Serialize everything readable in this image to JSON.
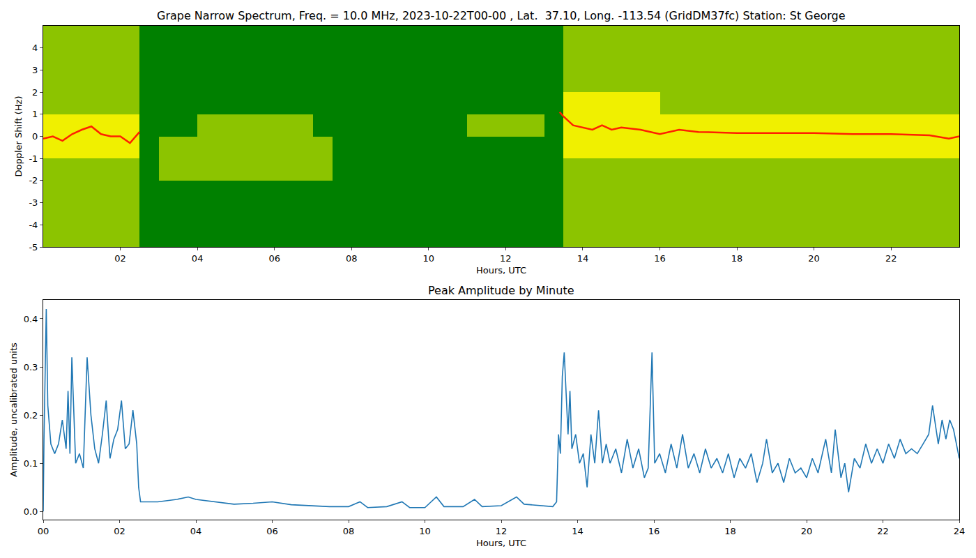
{
  "chart_data": [
    {
      "type": "heatmap",
      "title": "Grape Narrow Spectrum, Freq. = 10.0 MHz, 2023-10-22T00-00 , Lat.  37.10, Long. -113.54 (GridDM37fc) Station: St George",
      "xlabel": "Hours, UTC",
      "ylabel": "Doppler Shift (Hz)",
      "x": [
        0.25,
        0.75,
        1.25,
        1.75,
        2.25,
        2.75,
        3.25,
        3.75,
        4.25,
        4.75,
        5.25,
        5.75,
        6.25,
        6.75,
        7.25,
        7.75,
        8.25,
        8.75,
        9.25,
        9.75,
        10.25,
        10.75,
        11.25,
        11.75,
        12.25,
        12.75,
        13.25,
        13.75,
        14.25,
        14.75,
        15.25,
        15.75,
        16.25,
        16.75,
        17.25,
        17.75,
        18.25,
        18.75,
        19.25,
        19.75,
        20.25,
        20.75,
        21.25,
        21.75,
        22.25,
        22.75,
        23.25,
        23.75
      ],
      "y": [
        -4.5,
        -3.5,
        -2.5,
        -1.5,
        -0.5,
        0.5,
        1.5,
        2.5,
        3.5,
        4.5
      ],
      "z": [
        [
          1,
          1,
          1,
          1,
          1,
          0,
          0,
          0,
          0,
          0,
          0,
          0,
          0,
          0,
          0,
          0,
          0,
          0,
          0,
          0,
          0,
          0,
          0,
          0,
          0,
          0,
          0,
          1,
          1,
          1,
          1,
          1,
          1,
          1,
          1,
          1,
          1,
          1,
          1,
          1,
          1,
          1,
          1,
          1,
          1,
          1,
          1,
          1
        ],
        [
          1,
          1,
          1,
          1,
          1,
          0,
          0,
          0,
          0,
          0,
          0,
          0,
          0,
          0,
          0,
          0,
          0,
          0,
          0,
          0,
          0,
          0,
          0,
          0,
          0,
          0,
          0,
          1,
          1,
          1,
          1,
          1,
          1,
          1,
          1,
          1,
          1,
          1,
          1,
          1,
          1,
          1,
          1,
          1,
          1,
          1,
          1,
          1
        ],
        [
          1,
          1,
          1,
          1,
          1,
          0,
          0,
          0,
          0,
          0,
          0,
          0,
          0,
          0,
          0,
          0,
          0,
          0,
          0,
          0,
          0,
          0,
          0,
          0,
          0,
          0,
          0,
          1,
          1,
          1,
          1,
          1,
          1,
          1,
          1,
          1,
          1,
          1,
          1,
          1,
          1,
          1,
          1,
          1,
          1,
          1,
          1,
          1
        ],
        [
          1,
          1,
          1,
          1,
          1,
          0,
          1,
          1,
          1,
          1,
          1,
          1,
          1,
          1,
          1,
          0,
          0,
          0,
          0,
          0,
          0,
          0,
          0,
          0,
          0,
          0,
          0,
          1,
          1,
          1,
          1,
          1,
          1,
          1,
          1,
          1,
          1,
          1,
          1,
          1,
          1,
          1,
          1,
          1,
          1,
          1,
          1,
          1
        ],
        [
          2,
          2,
          2,
          2,
          2,
          0,
          1,
          1,
          1,
          1,
          1,
          1,
          1,
          1,
          1,
          0,
          0,
          0,
          0,
          0,
          0,
          0,
          0,
          0,
          0,
          0,
          0,
          2,
          2,
          2,
          2,
          2,
          2,
          2,
          2,
          2,
          2,
          2,
          2,
          2,
          2,
          2,
          2,
          2,
          2,
          2,
          2,
          2
        ],
        [
          2,
          2,
          2,
          2,
          2,
          0,
          0,
          0,
          1,
          1,
          1,
          1,
          1,
          1,
          0,
          0,
          0,
          0,
          0,
          0,
          0,
          0,
          1,
          1,
          1,
          1,
          0,
          2,
          2,
          2,
          2,
          2,
          2,
          2,
          2,
          2,
          2,
          2,
          2,
          2,
          2,
          2,
          2,
          2,
          2,
          2,
          2,
          2
        ],
        [
          1,
          1,
          1,
          1,
          1,
          0,
          0,
          0,
          0,
          0,
          0,
          0,
          0,
          0,
          0,
          0,
          0,
          0,
          0,
          0,
          0,
          0,
          0,
          0,
          0,
          0,
          0,
          2,
          2,
          2,
          2,
          2,
          1,
          1,
          1,
          1,
          1,
          1,
          1,
          1,
          1,
          1,
          1,
          1,
          1,
          1,
          1,
          1
        ],
        [
          1,
          1,
          1,
          1,
          1,
          0,
          0,
          0,
          0,
          0,
          0,
          0,
          0,
          0,
          0,
          0,
          0,
          0,
          0,
          0,
          0,
          0,
          0,
          0,
          0,
          0,
          0,
          1,
          1,
          1,
          1,
          1,
          1,
          1,
          1,
          1,
          1,
          1,
          1,
          1,
          1,
          1,
          1,
          1,
          1,
          1,
          1,
          1
        ],
        [
          1,
          1,
          1,
          1,
          1,
          0,
          0,
          0,
          0,
          0,
          0,
          0,
          0,
          0,
          0,
          0,
          0,
          0,
          0,
          0,
          0,
          0,
          0,
          0,
          0,
          0,
          0,
          1,
          1,
          1,
          1,
          1,
          1,
          1,
          1,
          1,
          1,
          1,
          1,
          1,
          1,
          1,
          1,
          1,
          1,
          1,
          1,
          1
        ],
        [
          1,
          1,
          1,
          1,
          1,
          0,
          0,
          0,
          0,
          0,
          0,
          0,
          0,
          0,
          0,
          0,
          0,
          0,
          0,
          0,
          0,
          0,
          0,
          0,
          0,
          0,
          0,
          1,
          1,
          1,
          1,
          1,
          1,
          1,
          1,
          1,
          1,
          1,
          1,
          1,
          1,
          1,
          1,
          1,
          1,
          1,
          1,
          1
        ]
      ],
      "zlim": [
        0,
        3
      ],
      "series": [
        {
          "type": "line",
          "color": "#ff2000",
          "x": [
            0,
            0.25,
            0.5,
            0.75,
            1.0,
            1.25,
            1.5,
            1.75,
            2.0,
            2.25,
            2.5,
            8.0,
            13.4,
            13.5,
            13.75,
            14.0,
            14.25,
            14.5,
            14.75,
            15.0,
            15.5,
            16.0,
            16.5,
            17.0,
            18.0,
            19.0,
            20.0,
            21.0,
            22.0,
            23.0,
            23.5,
            23.77
          ],
          "values": [
            -0.1,
            0.0,
            -0.2,
            0.1,
            0.3,
            0.45,
            0.1,
            0.0,
            0.0,
            -0.3,
            0.2,
            null,
            1.1,
            0.9,
            0.5,
            0.4,
            0.3,
            0.5,
            0.3,
            0.4,
            0.3,
            0.1,
            0.3,
            0.2,
            0.15,
            0.15,
            0.15,
            0.1,
            0.1,
            0.05,
            -0.1,
            0.0
          ]
        }
      ],
      "xlim": [
        0,
        23.77
      ],
      "xticks": [
        {
          "value": 2,
          "label": "02"
        },
        {
          "value": 4,
          "label": "04"
        },
        {
          "value": 6,
          "label": "06"
        },
        {
          "value": 8,
          "label": "08"
        },
        10,
        12,
        14,
        16,
        18,
        20,
        22
      ],
      "ylim": [
        -5,
        5
      ],
      "yticks": [
        -5,
        -4,
        -3,
        -2,
        -1,
        0,
        1,
        2,
        3,
        4
      ],
      "grid": false
    },
    {
      "type": "line",
      "title": "Peak Amplitude by Minute",
      "xlabel": "Hours, UTC",
      "ylabel": "Amplitude, uncalibrated units",
      "color": "#1f77b4",
      "x": [
        0,
        0.02,
        0.08,
        0.12,
        0.2,
        0.3,
        0.4,
        0.5,
        0.6,
        0.65,
        0.7,
        0.75,
        0.85,
        0.95,
        1.05,
        1.15,
        1.25,
        1.35,
        1.45,
        1.55,
        1.65,
        1.75,
        1.85,
        1.95,
        2.05,
        2.15,
        2.25,
        2.35,
        2.45,
        2.5,
        2.55,
        3.0,
        3.5,
        3.8,
        4.0,
        4.5,
        5.0,
        5.5,
        6.0,
        6.5,
        7.0,
        7.5,
        8.0,
        8.3,
        8.5,
        9.0,
        9.4,
        9.6,
        10.0,
        10.3,
        10.5,
        11.0,
        11.3,
        11.5,
        12.0,
        12.4,
        12.6,
        13.0,
        13.35,
        13.45,
        13.5,
        13.55,
        13.6,
        13.65,
        13.7,
        13.75,
        13.8,
        13.85,
        13.95,
        14.05,
        14.15,
        14.25,
        14.35,
        14.45,
        14.55,
        14.65,
        14.75,
        14.85,
        15.0,
        15.15,
        15.3,
        15.45,
        15.6,
        15.75,
        15.85,
        15.95,
        16.02,
        16.15,
        16.3,
        16.45,
        16.6,
        16.75,
        16.9,
        17.05,
        17.2,
        17.35,
        17.5,
        17.65,
        17.8,
        17.95,
        18.1,
        18.25,
        18.4,
        18.55,
        18.7,
        18.85,
        18.95,
        19.1,
        19.25,
        19.4,
        19.55,
        19.7,
        19.85,
        20.0,
        20.15,
        20.3,
        20.5,
        20.65,
        20.75,
        20.9,
        21.0,
        21.1,
        21.25,
        21.4,
        21.55,
        21.7,
        21.85,
        22.0,
        22.15,
        22.3,
        22.45,
        22.6,
        22.75,
        22.9,
        23.05,
        23.2,
        23.3,
        23.45,
        23.55,
        23.65,
        23.75,
        23.85,
        23.95,
        24.0
      ],
      "values": [
        0.0,
        0.15,
        0.42,
        0.22,
        0.14,
        0.12,
        0.14,
        0.19,
        0.13,
        0.25,
        0.12,
        0.32,
        0.1,
        0.12,
        0.09,
        0.32,
        0.2,
        0.13,
        0.1,
        0.16,
        0.23,
        0.11,
        0.15,
        0.17,
        0.23,
        0.13,
        0.14,
        0.21,
        0.14,
        0.05,
        0.02,
        0.02,
        0.025,
        0.03,
        0.025,
        0.02,
        0.015,
        0.017,
        0.02,
        0.014,
        0.012,
        0.01,
        0.01,
        0.02,
        0.008,
        0.01,
        0.02,
        0.008,
        0.008,
        0.03,
        0.01,
        0.01,
        0.025,
        0.01,
        0.012,
        0.03,
        0.015,
        0.012,
        0.01,
        0.02,
        0.16,
        0.12,
        0.28,
        0.33,
        0.25,
        0.16,
        0.25,
        0.13,
        0.16,
        0.1,
        0.12,
        0.05,
        0.16,
        0.1,
        0.21,
        0.1,
        0.14,
        0.1,
        0.13,
        0.08,
        0.15,
        0.09,
        0.13,
        0.07,
        0.09,
        0.33,
        0.1,
        0.12,
        0.08,
        0.14,
        0.09,
        0.16,
        0.09,
        0.12,
        0.08,
        0.13,
        0.09,
        0.11,
        0.08,
        0.12,
        0.07,
        0.11,
        0.09,
        0.12,
        0.06,
        0.1,
        0.15,
        0.08,
        0.1,
        0.06,
        0.11,
        0.08,
        0.09,
        0.07,
        0.11,
        0.08,
        0.15,
        0.08,
        0.17,
        0.07,
        0.1,
        0.04,
        0.11,
        0.09,
        0.14,
        0.1,
        0.13,
        0.1,
        0.14,
        0.11,
        0.15,
        0.12,
        0.13,
        0.12,
        0.14,
        0.16,
        0.22,
        0.14,
        0.19,
        0.15,
        0.19,
        0.17,
        0.13,
        0.11
      ],
      "xlim": [
        0,
        24
      ],
      "xticks": [
        {
          "value": 0,
          "label": "00"
        },
        {
          "value": 2,
          "label": "02"
        },
        {
          "value": 4,
          "label": "04"
        },
        {
          "value": 6,
          "label": "06"
        },
        {
          "value": 8,
          "label": "08"
        },
        10,
        12,
        14,
        16,
        18,
        20,
        22,
        24
      ],
      "ylim": [
        -0.017,
        0.439
      ],
      "yticks": [
        {
          "value": 0,
          "label": "0.0"
        },
        0.1,
        0.2,
        0.3,
        0.4
      ],
      "grid": false
    }
  ]
}
